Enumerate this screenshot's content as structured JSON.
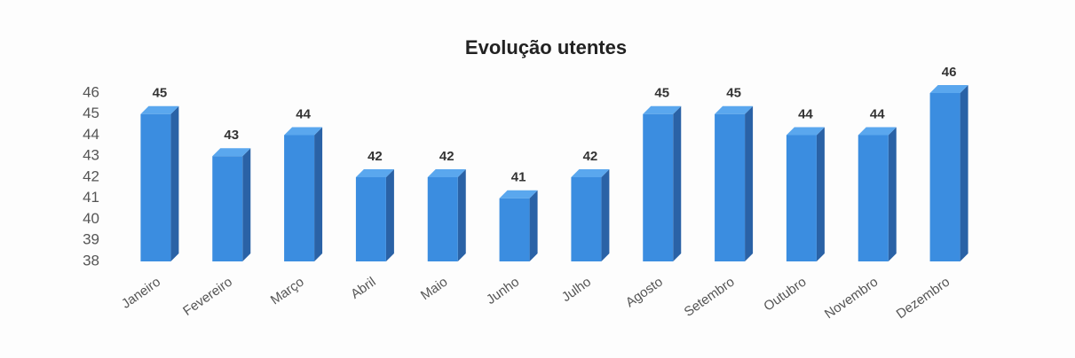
{
  "chart_data": {
    "type": "bar3d",
    "title": "Evolução utentes",
    "categories": [
      "Janeiro",
      "Fevereiro",
      "Março",
      "Abril",
      "Maio",
      "Junho",
      "Julho",
      "Agosto",
      "Setembro",
      "Outubro",
      "Novembro",
      "Dezembro"
    ],
    "values": [
      45,
      43,
      44,
      42,
      42,
      41,
      42,
      45,
      45,
      44,
      44,
      46
    ],
    "color": "#3b8de0",
    "ylim": [
      38,
      46
    ],
    "yticks": [
      38,
      39,
      40,
      41,
      42,
      43,
      44,
      45,
      46
    ],
    "grid": false
  }
}
